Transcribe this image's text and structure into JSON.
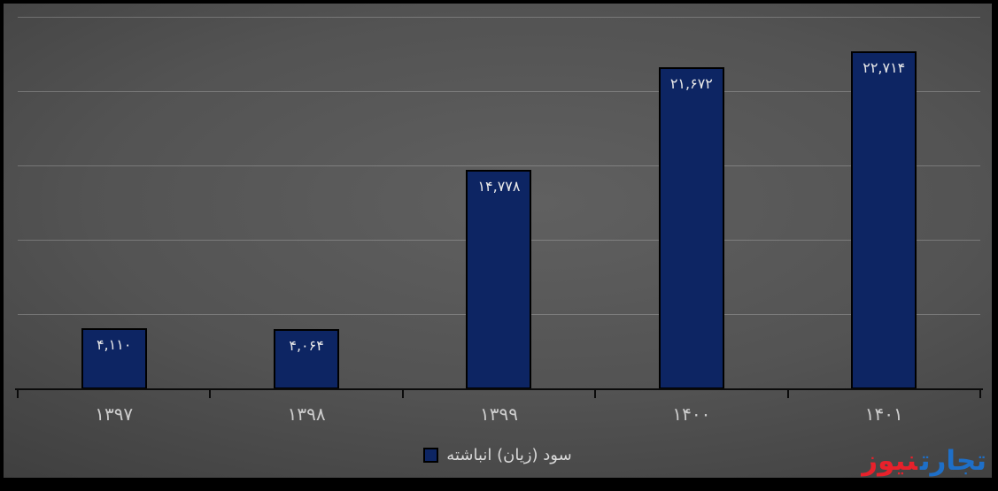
{
  "chart_data": {
    "type": "bar",
    "title": "",
    "categories": [
      "۱۳۹۷",
      "۱۳۹۸",
      "۱۳۹۹",
      "۱۴۰۰",
      "۱۴۰۱"
    ],
    "categories_western": [
      1397,
      1398,
      1399,
      1400,
      1401
    ],
    "series": [
      {
        "name": "سود (زیان) انباشته",
        "values": [
          4110,
          4064,
          14778,
          21672,
          22714
        ]
      }
    ],
    "value_labels": [
      "۴,۱۱۰",
      "۴,۰۶۴",
      "۱۴,۷۷۸",
      "۲۱,۶۷۲",
      "۲۲,۷۱۴"
    ],
    "xlabel": "",
    "ylabel": "",
    "ylim": [
      0,
      25000
    ],
    "gridline_step": 5000,
    "grid": true,
    "legend_position": "bottom-center"
  },
  "legend": {
    "label": "سود (زیان) انباشته"
  },
  "watermark": {
    "word_right": "تجارت",
    "word_left": "نیوز"
  },
  "colors": {
    "bar_fill": "#0d2563",
    "bar_border": "#000000",
    "value_label": "#e9e9e9",
    "category_label": "#cdcdcd",
    "legend_text": "#d9d9d9",
    "axis": "#0b0b0b",
    "gridline": "rgba(255,255,255,0.22)",
    "logo_blue": "#1e6fc8",
    "logo_red": "#e8212b",
    "frame": "#000000"
  }
}
